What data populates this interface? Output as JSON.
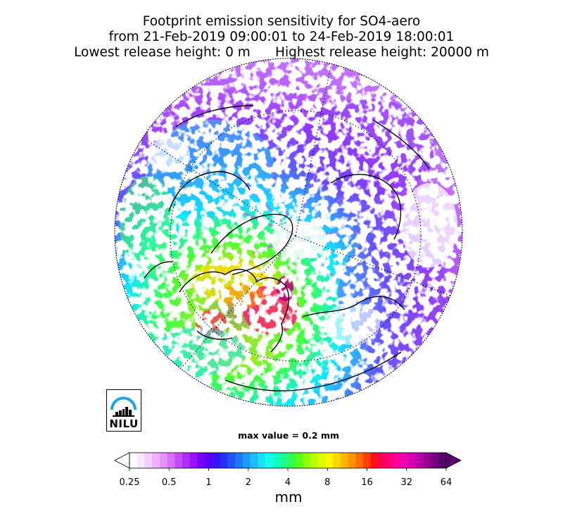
{
  "title": {
    "line1": "Footprint emission sensitivity for SO4-aero",
    "line2": "from 21-Feb-2019 09:00:01 to 24-Feb-2019 18:00:01",
    "line3": "Lowest release height: 0 m      Highest release height: 20000 m"
  },
  "logo": {
    "text": "NILU",
    "icon": "nilu-logo-icon"
  },
  "max_value_label": "max value = 0.2 mm",
  "colorbar": {
    "unit": "mm",
    "ticks": [
      "0.25",
      "0.5",
      "1",
      "2",
      "4",
      "8",
      "16",
      "32",
      "64"
    ],
    "colors": [
      "#ffffff",
      "#fbe6ff",
      "#f5ccff",
      "#efb0ff",
      "#e591ff",
      "#d870ff",
      "#c64dff",
      "#b02cff",
      "#9a10ff",
      "#7a00ff",
      "#5a00ff",
      "#3a14ff",
      "#2432ff",
      "#1f55ff",
      "#1c78ff",
      "#1a9aff",
      "#1abfff",
      "#1ae0ff",
      "#13ffec",
      "#10ffc4",
      "#1aff8c",
      "#30ff4c",
      "#5aff1a",
      "#8cff00",
      "#b8ff00",
      "#deff00",
      "#fff500",
      "#ffd600",
      "#ffb400",
      "#ff9400",
      "#ff6c00",
      "#ff3e00",
      "#ff0e20",
      "#ff0050",
      "#ff0078",
      "#ff009c",
      "#f000b0",
      "#d600b0",
      "#b800a6",
      "#980094",
      "#780080",
      "#58006c"
    ]
  }
}
